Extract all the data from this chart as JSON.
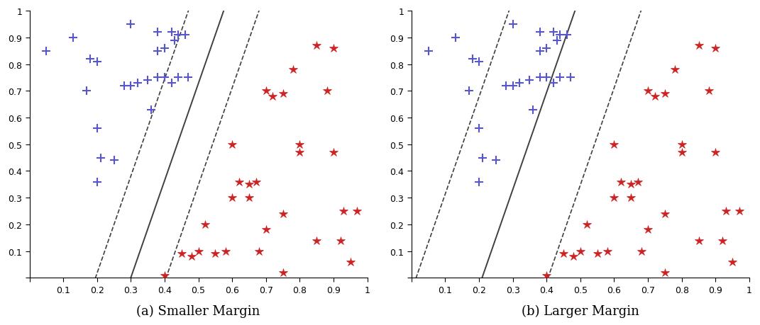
{
  "blue_x": [
    0.05,
    0.13,
    0.18,
    0.2,
    0.17,
    0.2,
    0.21,
    0.25,
    0.2,
    0.28,
    0.3,
    0.32,
    0.35,
    0.38,
    0.4,
    0.42,
    0.38,
    0.4,
    0.44,
    0.42,
    0.3,
    0.36,
    0.43,
    0.46,
    0.44,
    0.47,
    0.38
  ],
  "blue_y": [
    0.85,
    0.9,
    0.82,
    0.81,
    0.7,
    0.56,
    0.45,
    0.44,
    0.36,
    0.72,
    0.72,
    0.73,
    0.74,
    0.75,
    0.75,
    0.73,
    0.85,
    0.86,
    0.91,
    0.92,
    0.95,
    0.63,
    0.89,
    0.91,
    0.75,
    0.75,
    0.92
  ],
  "red_x": [
    0.4,
    0.45,
    0.48,
    0.5,
    0.52,
    0.55,
    0.58,
    0.6,
    0.62,
    0.65,
    0.67,
    0.68,
    0.7,
    0.72,
    0.75,
    0.78,
    0.8,
    0.85,
    0.88,
    0.9,
    0.92,
    0.95,
    0.97,
    0.6,
    0.65,
    0.7,
    0.75,
    0.8,
    0.9,
    0.93,
    0.75,
    0.85
  ],
  "red_y": [
    0.01,
    0.09,
    0.08,
    0.1,
    0.2,
    0.09,
    0.1,
    0.3,
    0.36,
    0.35,
    0.36,
    0.1,
    0.7,
    0.68,
    0.69,
    0.78,
    0.5,
    0.87,
    0.7,
    0.86,
    0.14,
    0.06,
    0.25,
    0.5,
    0.3,
    0.18,
    0.24,
    0.47,
    0.47,
    0.25,
    0.02,
    0.14
  ],
  "small_slope": 3.636,
  "small_intercept_solid": -1.09,
  "small_intercept_dash1": -1.47,
  "small_intercept_dash2": -0.71,
  "large_slope": 3.636,
  "large_intercept_solid": -0.76,
  "large_intercept_dash1": -1.47,
  "large_intercept_dash2": -0.05,
  "xlim": [
    0,
    1
  ],
  "ylim": [
    0,
    1
  ],
  "xlabel_ticks": [
    0,
    0.1,
    0.2,
    0.3,
    0.4,
    0.5,
    0.6,
    0.7,
    0.8,
    0.9,
    1
  ],
  "ylabel_ticks": [
    0,
    0.1,
    0.2,
    0.3,
    0.4,
    0.5,
    0.6,
    0.7,
    0.8,
    0.9,
    1
  ],
  "label_a": "(a) Smaller Margin",
  "label_b": "(b) Larger Margin",
  "blue_color": "#5555CC",
  "red_color": "#CC2222",
  "line_color": "#404040",
  "background": "#ffffff"
}
